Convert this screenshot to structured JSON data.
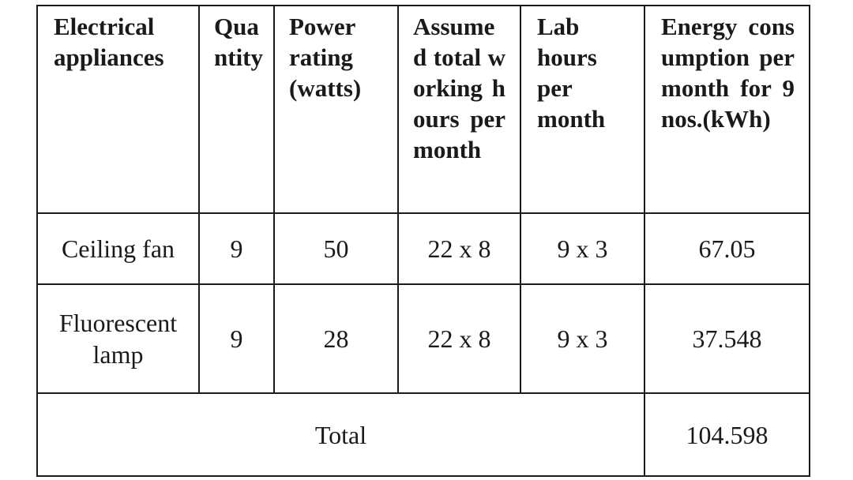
{
  "table": {
    "headers": {
      "appliances": "Electrical appliances",
      "quantity": "Quantity",
      "power_rating": "Power rating (watts)",
      "total_hours": "Assumed total working hours per month",
      "lab_hours": "Lab hours per month",
      "energy": "Energy consumption per month for 9 nos.(kWh)"
    },
    "rows": [
      {
        "appliance": "Ceiling fan",
        "quantity": "9",
        "power": "50",
        "total_hours": "22 x 8",
        "lab_hours": "9 x 3",
        "energy": "67.05"
      },
      {
        "appliance": "Fluorescent lamp",
        "quantity": "9",
        "power": "28",
        "total_hours": "22 x 8",
        "lab_hours": "9 x 3",
        "energy": "37.548"
      }
    ],
    "total": {
      "label": "Total",
      "value": "104.598"
    }
  }
}
